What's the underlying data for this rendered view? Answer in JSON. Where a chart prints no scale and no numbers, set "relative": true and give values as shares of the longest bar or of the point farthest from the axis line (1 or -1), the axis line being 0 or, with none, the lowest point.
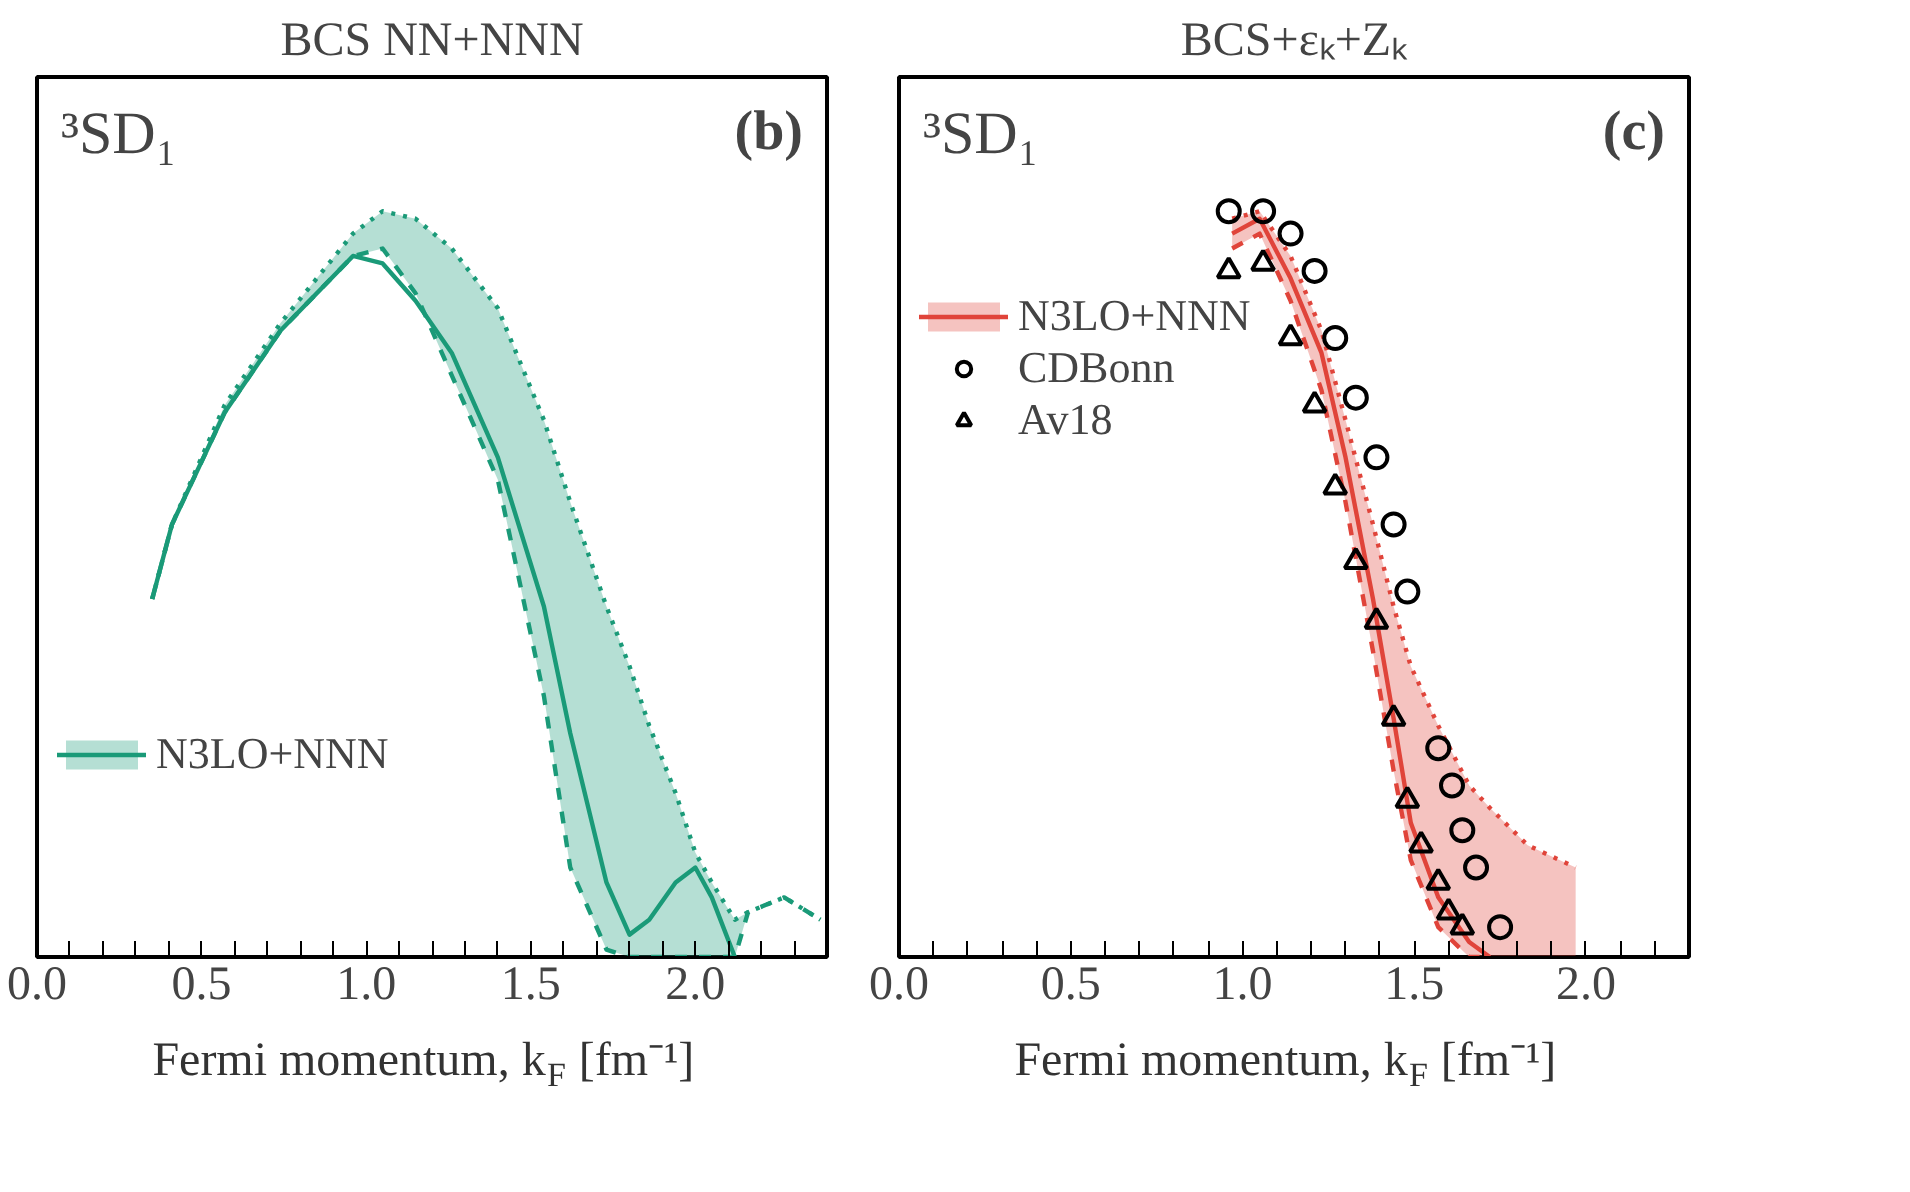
{
  "chart_data": [
    {
      "type": "line",
      "title": "BCS NN+NNN",
      "xlabel": "Fermi momentum, k$_{F}$ [fm⁻¹]",
      "relative": true,
      "tick_labels": "x",
      "legend": "bottom left",
      "xlim": [
        0,
        2.4
      ],
      "xticks": [
        {
          "value": 0,
          "label": "0.0"
        },
        {
          "value": 0.1,
          "label": null
        },
        {
          "value": 0.2,
          "label": null
        },
        {
          "value": 0.3,
          "label": null
        },
        {
          "value": 0.4,
          "label": null
        },
        {
          "value": 0.5,
          "label": "0.5"
        },
        {
          "value": 0.6,
          "label": null
        },
        {
          "value": 0.7,
          "label": null
        },
        {
          "value": 0.8,
          "label": null
        },
        {
          "value": 0.9,
          "label": null
        },
        {
          "value": 1,
          "label": "1.0"
        },
        {
          "value": 1.1,
          "label": null
        },
        {
          "value": 1.2,
          "label": null
        },
        {
          "value": 1.3,
          "label": null
        },
        {
          "value": 1.4,
          "label": null
        },
        {
          "value": 1.5,
          "label": "1.5"
        },
        {
          "value": 1.6,
          "label": null
        },
        {
          "value": 1.7,
          "label": null
        },
        {
          "value": 1.8,
          "label": null
        },
        {
          "value": 1.9,
          "label": null
        },
        {
          "value": 2,
          "label": "2.0"
        },
        {
          "value": 2.1,
          "label": null
        },
        {
          "value": 2.2,
          "label": null
        },
        {
          "value": 2.3,
          "label": null
        }
      ],
      "annotations": [
        "³SD₁",
        "(b)"
      ],
      "series": [
        {
          "name": "N3LO+NNN",
          "line_style": "solid",
          "color": "#1a9a78",
          "x": [
            0.35,
            0.41,
            0.57,
            0.74,
            0.96,
            1.05,
            1.15,
            1.26,
            1.4,
            1.54,
            1.62,
            1.73,
            1.8,
            1.86,
            1.94,
            2.0,
            2.05,
            2.12,
            2.16,
            2.27,
            2.38
          ],
          "values": [
            0.48,
            0.58,
            0.73,
            0.84,
            0.94,
            0.93,
            0.88,
            0.81,
            0.67,
            0.47,
            0.3,
            0.1,
            0.03,
            0.05,
            0.1,
            0.12,
            0.08,
            0.0,
            null,
            null,
            null
          ],
          "lower": [
            0.48,
            0.58,
            0.73,
            0.84,
            0.94,
            0.95,
            0.89,
            0.78,
            0.64,
            0.35,
            0.12,
            0.01,
            0,
            0,
            0,
            0,
            0,
            0,
            0.06,
            0.08,
            0.05
          ],
          "upper": [
            0.48,
            0.58,
            0.74,
            0.85,
            0.97,
            1.0,
            0.99,
            0.95,
            0.87,
            0.72,
            0.61,
            0.47,
            0.39,
            0.31,
            0.22,
            0.14,
            0.1,
            0.05,
            0.06,
            0.08,
            0.05
          ]
        },
        {
          "line_style": "dashed",
          "color": "#1a9a78",
          "x": [
            0.35,
            0.41,
            0.57,
            0.74,
            0.96,
            1.05,
            1.15,
            1.26,
            1.4,
            1.54,
            1.62,
            1.73,
            1.8,
            1.86,
            1.94,
            2.0,
            2.05,
            2.12,
            2.16,
            2.27,
            2.38
          ],
          "values": [
            0.48,
            0.58,
            0.73,
            0.84,
            0.94,
            0.95,
            0.89,
            0.78,
            0.64,
            0.35,
            0.12,
            0.01,
            0,
            0,
            0,
            0,
            0,
            0,
            0.06,
            0.08,
            0.05
          ]
        },
        {
          "line_style": "dotted",
          "color": "#1a9a78",
          "x": [
            0.35,
            0.41,
            0.57,
            0.74,
            0.96,
            1.05,
            1.15,
            1.26,
            1.4,
            1.54,
            1.62,
            1.73,
            1.8,
            1.86,
            1.94,
            2.0,
            2.05,
            2.12,
            2.16,
            2.27,
            2.38
          ],
          "values": [
            0.48,
            0.58,
            0.74,
            0.85,
            0.97,
            1.0,
            0.99,
            0.95,
            0.87,
            0.72,
            0.61,
            0.47,
            0.39,
            0.31,
            0.22,
            0.14,
            0.1,
            0.05,
            0.06,
            0.08,
            0.05
          ]
        }
      ]
    },
    {
      "type": "line",
      "title": "BCS+εₖ+Zₖ",
      "xlabel": "Fermi momentum, k$_{F}$ [fm⁻¹]",
      "relative": true,
      "tick_labels": "x",
      "legend": "top left",
      "xlim": [
        0,
        2.3
      ],
      "xticks": [
        {
          "value": 0,
          "label": "0.0"
        },
        {
          "value": 0.1,
          "label": null
        },
        {
          "value": 0.2,
          "label": null
        },
        {
          "value": 0.3,
          "label": null
        },
        {
          "value": 0.4,
          "label": null
        },
        {
          "value": 0.5,
          "label": "0.5"
        },
        {
          "value": 0.6,
          "label": null
        },
        {
          "value": 0.7,
          "label": null
        },
        {
          "value": 0.8,
          "label": null
        },
        {
          "value": 0.9,
          "label": null
        },
        {
          "value": 1,
          "label": "1.0"
        },
        {
          "value": 1.1,
          "label": null
        },
        {
          "value": 1.2,
          "label": null
        },
        {
          "value": 1.3,
          "label": null
        },
        {
          "value": 1.4,
          "label": null
        },
        {
          "value": 1.5,
          "label": "1.5"
        },
        {
          "value": 1.6,
          "label": null
        },
        {
          "value": 1.7,
          "label": null
        },
        {
          "value": 1.8,
          "label": null
        },
        {
          "value": 1.9,
          "label": null
        },
        {
          "value": 2,
          "label": "2.0"
        },
        {
          "value": 2.1,
          "label": null
        },
        {
          "value": 2.2,
          "label": null
        }
      ],
      "annotations": [
        "³SD₁",
        "(c)"
      ],
      "series": [
        {
          "name": "N3LO+NNN",
          "line_style": "solid",
          "color": "#e0443a",
          "x": [
            0.97,
            1.05,
            1.14,
            1.23,
            1.3,
            1.38,
            1.44,
            1.49,
            1.57,
            1.66,
            1.72,
            1.83,
            1.97
          ],
          "values": [
            0.97,
            0.99,
            0.91,
            0.81,
            0.67,
            0.48,
            0.32,
            0.18,
            0.08,
            0.02,
            0.0,
            null,
            null
          ],
          "lower": [
            0.95,
            0.97,
            0.88,
            0.76,
            0.61,
            0.41,
            0.25,
            0.13,
            0.04,
            0.0,
            0.0,
            0.0,
            0.0
          ],
          "upper": [
            0.99,
            1.0,
            0.94,
            0.84,
            0.72,
            0.58,
            0.47,
            0.39,
            0.31,
            0.23,
            0.2,
            0.15,
            0.12
          ]
        },
        {
          "line_style": "dashed",
          "color": "#e0443a",
          "x": [
            0.97,
            1.05,
            1.14,
            1.23,
            1.3,
            1.38,
            1.44,
            1.49,
            1.57,
            1.66,
            1.72
          ],
          "values": [
            0.95,
            0.97,
            0.88,
            0.76,
            0.61,
            0.41,
            0.25,
            0.13,
            0.04,
            0.0,
            0.0
          ]
        },
        {
          "line_style": "dotted",
          "color": "#e0443a",
          "x": [
            0.97,
            1.05,
            1.14,
            1.23,
            1.3,
            1.38,
            1.44,
            1.49,
            1.57,
            1.66,
            1.72,
            1.83,
            1.97
          ],
          "values": [
            0.99,
            1.0,
            0.94,
            0.84,
            0.72,
            0.58,
            0.47,
            0.39,
            0.31,
            0.23,
            0.2,
            0.15,
            0.12
          ]
        },
        {
          "name": "CDBonn",
          "type": "scatter",
          "marker": "circle",
          "color": "#000000",
          "x": [
            0.96,
            1.06,
            1.14,
            1.21,
            1.27,
            1.33,
            1.39,
            1.44,
            1.48,
            1.57,
            1.61,
            1.64,
            1.68,
            1.75
          ],
          "values": [
            1.0,
            1.0,
            0.97,
            0.92,
            0.83,
            0.75,
            0.67,
            0.58,
            0.49,
            0.28,
            0.23,
            0.17,
            0.12,
            0.04
          ]
        },
        {
          "name": "Av18",
          "type": "scatter",
          "marker": "triangle",
          "color": "#000000",
          "x": [
            0.96,
            1.06,
            1.14,
            1.21,
            1.27,
            1.33,
            1.39,
            1.44,
            1.48,
            1.52,
            1.57,
            1.6,
            1.64
          ],
          "values": [
            0.92,
            0.93,
            0.83,
            0.74,
            0.63,
            0.53,
            0.45,
            0.32,
            0.21,
            0.15,
            0.1,
            0.06,
            0.04
          ]
        }
      ]
    }
  ]
}
